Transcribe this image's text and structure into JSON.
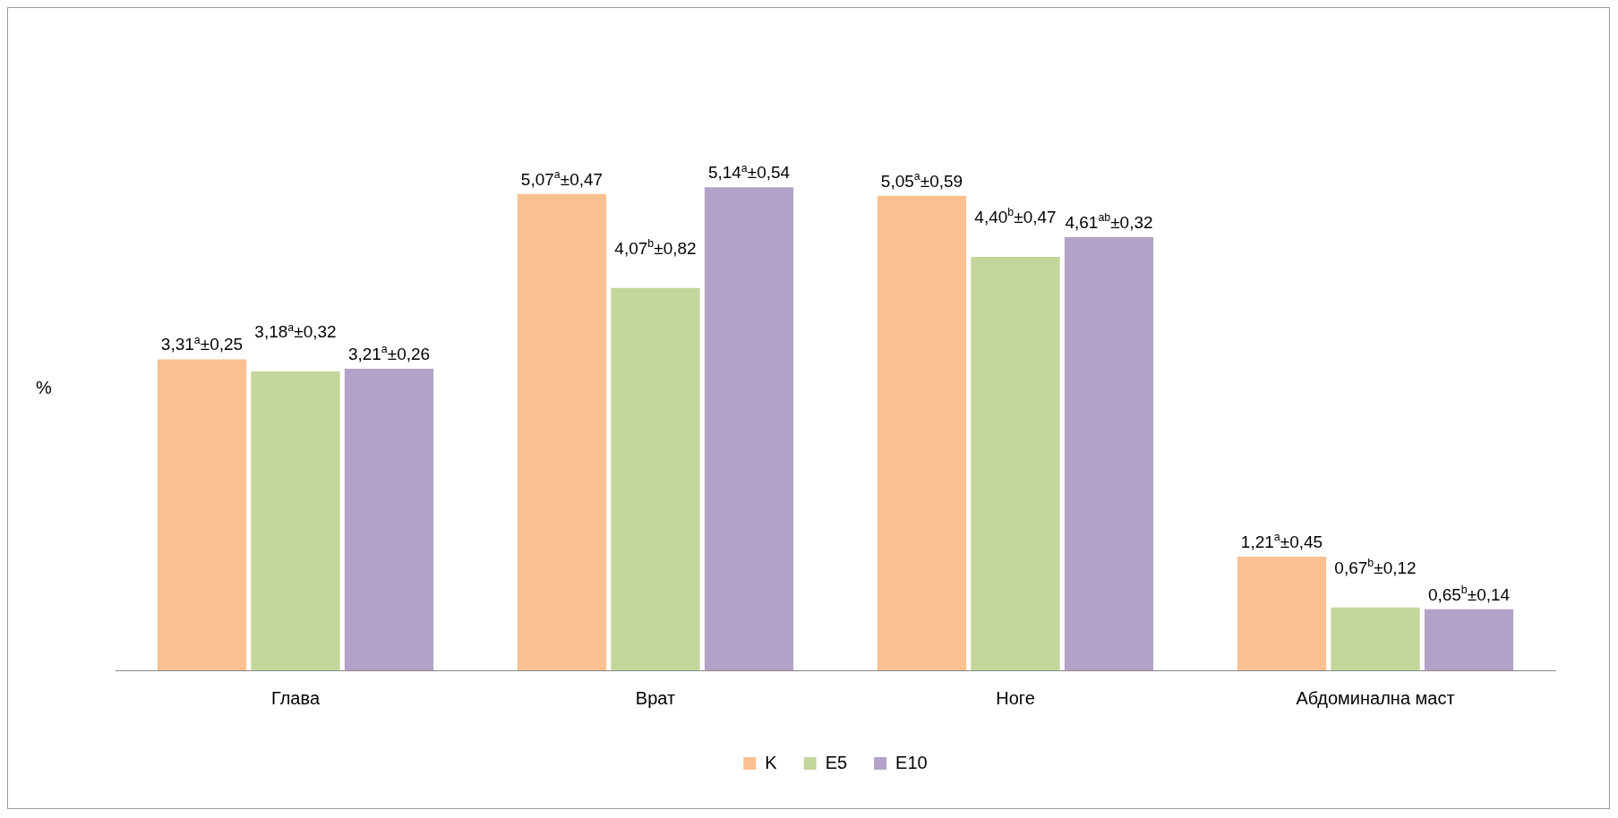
{
  "chart_data": {
    "type": "bar",
    "ylabel": "%",
    "categories": [
      "Глава",
      "Врат",
      "Ноге",
      "Абдоминална маст"
    ],
    "series": [
      {
        "name": "K",
        "color": "#fac090",
        "values": [
          3.31,
          5.07,
          5.05,
          1.21
        ],
        "value_labels": [
          "3,31$^{a}$±0,25",
          "5,07$^{a}$±0,47",
          "5,05$^{a}$±0,59",
          "1,21$^{a}$±0,45"
        ]
      },
      {
        "name": "E5",
        "color": "#c3d69b",
        "values": [
          3.18,
          4.07,
          4.4,
          0.67
        ],
        "value_labels": [
          "3,18$^{a}$±0,32",
          "4,07$^{b}$±0,82",
          "4,40$^{b}$±0,47",
          "0,67$^{b}$±0,12"
        ]
      },
      {
        "name": "E10",
        "color": "#b3a2c7",
        "values": [
          3.21,
          5.14,
          4.61,
          0.65
        ],
        "value_labels": [
          "3,21$^{a}$±0,26",
          "5,14$^{a}$±0,54",
          "4,61$^{ab}$±0,32",
          "0,65$^{b}$±0,14"
        ]
      }
    ],
    "grid": false,
    "legend": "bottom"
  }
}
